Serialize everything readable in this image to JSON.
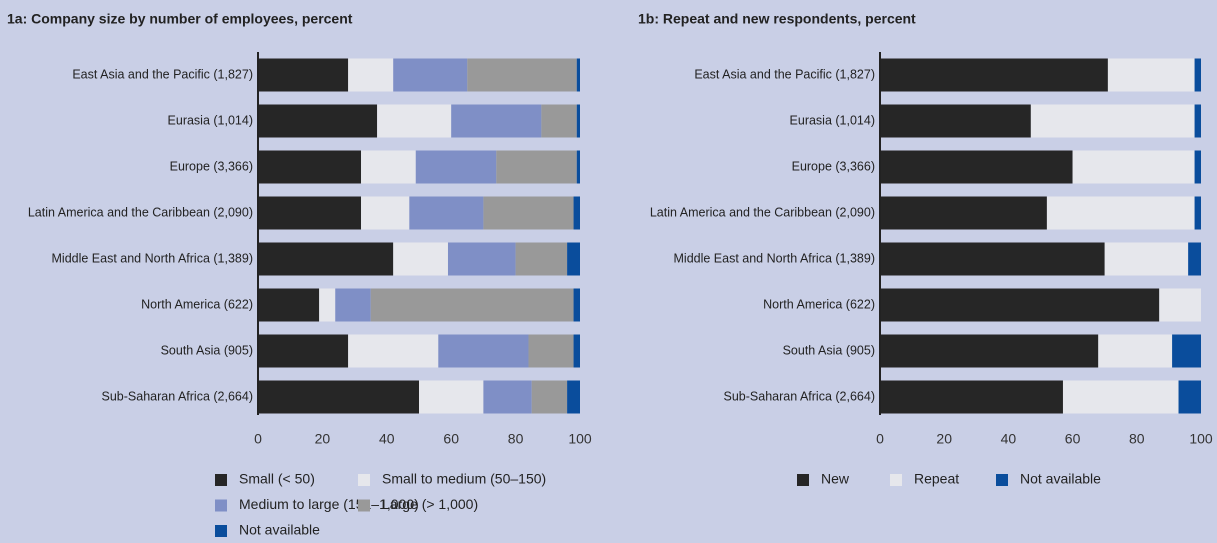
{
  "chart_data": [
    {
      "type": "stacked-barh",
      "title": "1a: Company size by number of employees, percent",
      "categories": [
        "East Asia and the Pacific (1,827)",
        "Eurasia (1,014)",
        "Europe (3,366)",
        "Latin America and the Caribbean (2,090)",
        "Middle East and North Africa (1,389)",
        "North America (622)",
        "South Asia (905)",
        "Sub-Saharan Africa (2,664)"
      ],
      "series": [
        {
          "name": "Small (< 50)",
          "color": "#262626",
          "values": [
            28,
            37,
            32,
            32,
            42,
            19,
            28,
            50
          ]
        },
        {
          "name": "Small to medium (50–150)",
          "color": "#e6e7ec",
          "values": [
            14,
            23,
            17,
            15,
            17,
            5,
            28,
            20
          ]
        },
        {
          "name": "Medium to large (151–1,000)",
          "color": "#7f8fc6",
          "values": [
            23,
            28,
            25,
            23,
            21,
            11,
            28,
            15
          ]
        },
        {
          "name": "Large (> 1,000)",
          "color": "#999999",
          "values": [
            34,
            11,
            25,
            28,
            16,
            63,
            14,
            11
          ]
        },
        {
          "name": "Not available",
          "color": "#0a4d9c",
          "values": [
            1,
            1,
            1,
            2,
            4,
            2,
            2,
            4
          ]
        }
      ],
      "xlim": [
        0,
        100
      ],
      "xticks": [
        0,
        20,
        40,
        60,
        80,
        100
      ]
    },
    {
      "type": "stacked-barh",
      "title": "1b: Repeat and new respondents, percent",
      "categories": [
        "East Asia and the Pacific (1,827)",
        "Eurasia (1,014)",
        "Europe (3,366)",
        "Latin America and the Caribbean (2,090)",
        "Middle East and North Africa (1,389)",
        "North America (622)",
        "South Asia (905)",
        "Sub-Saharan Africa (2,664)"
      ],
      "series": [
        {
          "name": "New",
          "color": "#262626",
          "values": [
            71,
            47,
            60,
            52,
            70,
            87,
            68,
            57
          ]
        },
        {
          "name": "Repeat",
          "color": "#e6e7ec",
          "values": [
            27,
            51,
            38,
            46,
            26,
            13,
            23,
            36
          ]
        },
        {
          "name": "Not available",
          "color": "#0a4d9c",
          "values": [
            2,
            2,
            2,
            2,
            4,
            0,
            9,
            7
          ]
        }
      ],
      "xlim": [
        0,
        100
      ],
      "xticks": [
        0,
        20,
        40,
        60,
        80,
        100
      ]
    }
  ]
}
